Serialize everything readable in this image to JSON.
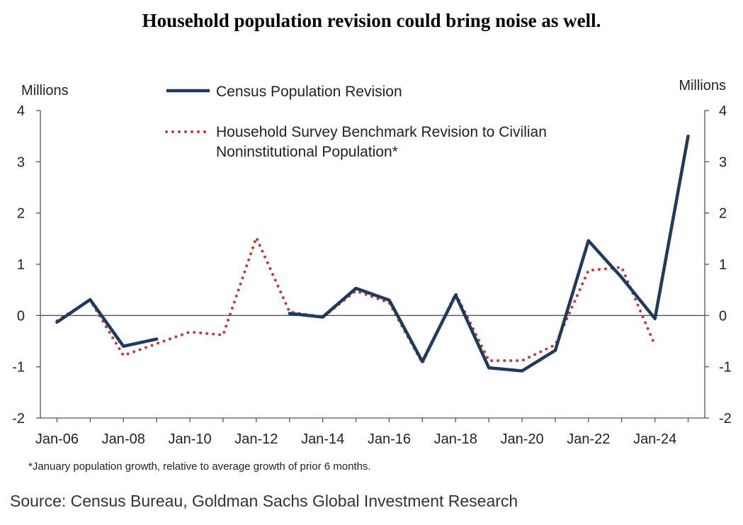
{
  "chart_data": {
    "type": "line",
    "title": "Household population revision could bring noise as well.",
    "y_unit_left": "Millions",
    "y_unit_right": "Millions",
    "ylim": [
      -2,
      4
    ],
    "yticks": [
      -2,
      -1,
      0,
      1,
      2,
      3,
      4
    ],
    "ytick_labels": [
      "-2",
      "-1",
      "0",
      "1",
      "2",
      "3",
      "4"
    ],
    "x_range": [
      2005.5,
      2025.5
    ],
    "xticks": [
      2006,
      2008,
      2010,
      2012,
      2014,
      2016,
      2018,
      2020,
      2022,
      2024
    ],
    "xtick_labels": [
      "Jan-06",
      "Jan-08",
      "Jan-10",
      "Jan-12",
      "Jan-14",
      "Jan-16",
      "Jan-18",
      "Jan-20",
      "Jan-22",
      "Jan-24"
    ],
    "series": [
      {
        "name": "Census Population Revision",
        "color": "#1f3a5c",
        "style": "solid",
        "segments": [
          [
            [
              2006,
              -0.13
            ],
            [
              2007,
              0.31
            ],
            [
              2008,
              -0.6
            ],
            [
              2009,
              -0.46
            ]
          ],
          [
            [
              2013,
              0.04
            ],
            [
              2014,
              -0.03
            ],
            [
              2015,
              0.53
            ],
            [
              2016,
              0.3
            ],
            [
              2017,
              -0.9
            ],
            [
              2018,
              0.4
            ],
            [
              2019,
              -1.02
            ],
            [
              2020,
              -1.08
            ],
            [
              2021,
              -0.68
            ],
            [
              2022,
              1.46
            ],
            [
              2023,
              0.74
            ],
            [
              2024,
              -0.06
            ],
            [
              2025,
              3.5
            ]
          ]
        ]
      },
      {
        "name": "Household Survey Benchmark Revision to Civilian Noninstitutional Population*",
        "legend_lines": [
          "Household Survey Benchmark Revision to Civilian",
          "Noninstitutional Population*"
        ],
        "color": "#c0393b",
        "style": "dotted",
        "segments": [
          [
            [
              2006,
              -0.1
            ],
            [
              2007,
              0.3
            ],
            [
              2008,
              -0.78
            ],
            [
              2009,
              -0.55
            ],
            [
              2010,
              -0.32
            ],
            [
              2011,
              -0.38
            ],
            [
              2012,
              1.52
            ],
            [
              2013,
              0.07
            ],
            [
              2014,
              -0.03
            ],
            [
              2015,
              0.48
            ],
            [
              2016,
              0.25
            ],
            [
              2017,
              -0.93
            ],
            [
              2018,
              0.43
            ],
            [
              2019,
              -0.88
            ],
            [
              2020,
              -0.88
            ],
            [
              2021,
              -0.57
            ],
            [
              2022,
              0.88
            ],
            [
              2023,
              0.94
            ],
            [
              2024,
              -0.58
            ]
          ]
        ]
      }
    ],
    "footnote": "*January population growth, relative to average growth of prior 6 months.",
    "source": "Source: Census Bureau, Goldman Sachs Global Investment Research"
  }
}
